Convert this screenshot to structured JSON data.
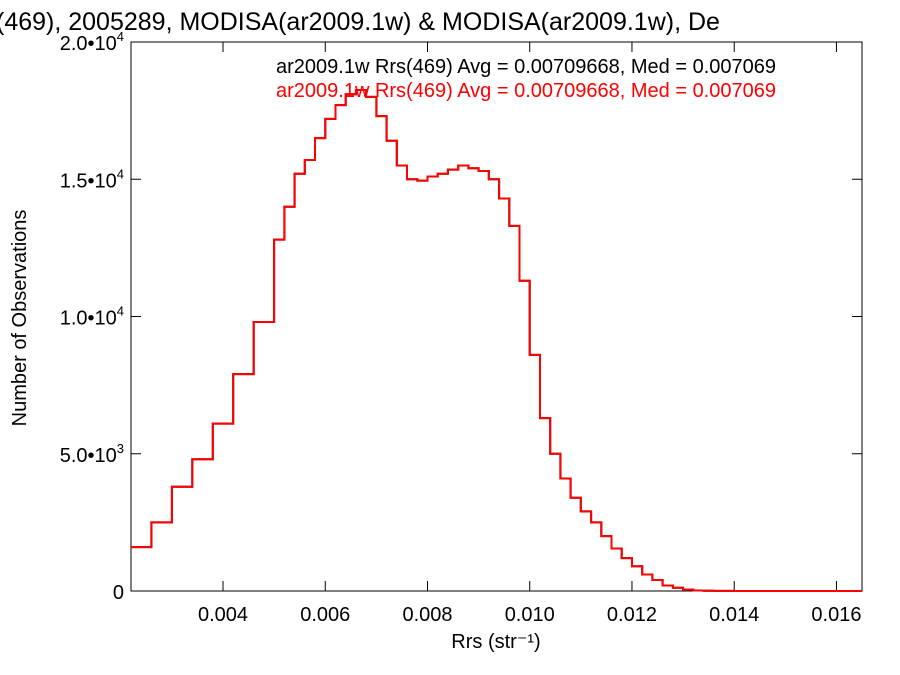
{
  "chart_data": {
    "type": "line",
    "title": "(469), 2005289, MODISA(ar2009.1w) & MODISA(ar2009.1w), De",
    "xlabel": "Rrs (str⁻¹)",
    "ylabel": "Number of Observations",
    "xlim": [
      0.0022,
      0.0165
    ],
    "ylim": [
      0,
      20000
    ],
    "x_ticks": [
      0.004,
      0.006,
      0.008,
      0.01,
      0.012,
      0.014,
      0.016
    ],
    "x_tick_labels": [
      "0.004",
      "0.006",
      "0.008",
      "0.010",
      "0.012",
      "0.014",
      "0.016"
    ],
    "y_ticks": [
      0,
      5000,
      10000,
      15000,
      20000
    ],
    "y_tick_labels": [
      {
        "mant": "0",
        "exp": ""
      },
      {
        "mant": "5.0•10",
        "exp": "3"
      },
      {
        "mant": "1.0•10",
        "exp": "4"
      },
      {
        "mant": "1.5•10",
        "exp": "4"
      },
      {
        "mant": "2.0•10",
        "exp": "4"
      }
    ],
    "grid": false,
    "step": true,
    "series": [
      {
        "name": "ar2009.1w Rrs(469) Avg = 0.00709668, Med = 0.007069",
        "color": "#000000",
        "x": [
          0.0022,
          0.0026,
          0.003,
          0.0034,
          0.0038,
          0.0042,
          0.0046,
          0.005,
          0.0052,
          0.0054,
          0.0056,
          0.0058,
          0.006,
          0.0062,
          0.0064,
          0.0066,
          0.0068,
          0.007,
          0.0072,
          0.0074,
          0.0076,
          0.0078,
          0.008,
          0.0082,
          0.0084,
          0.0086,
          0.0088,
          0.009,
          0.0092,
          0.0094,
          0.0096,
          0.0098,
          0.01,
          0.0102,
          0.0104,
          0.0106,
          0.0108,
          0.011,
          0.0112,
          0.0114,
          0.0116,
          0.0118,
          0.012,
          0.0122,
          0.0124,
          0.0126,
          0.0128,
          0.013,
          0.0132,
          0.0134,
          0.0136,
          0.014,
          0.015,
          0.016,
          0.0165
        ],
        "y": [
          1600,
          2500,
          3800,
          4800,
          6100,
          7900,
          9800,
          12800,
          14000,
          15200,
          15700,
          16500,
          17200,
          17700,
          18100,
          18250,
          18000,
          17300,
          16400,
          15500,
          15000,
          14950,
          15100,
          15200,
          15350,
          15500,
          15400,
          15300,
          15000,
          14300,
          13300,
          11300,
          8600,
          6300,
          5000,
          4100,
          3400,
          2900,
          2500,
          2000,
          1550,
          1200,
          900,
          600,
          400,
          200,
          120,
          50,
          20,
          10,
          5,
          0,
          0,
          0,
          0
        ]
      },
      {
        "name": "ar2009.1w Rrs(469) Avg = 0.00709668, Med = 0.007069",
        "color": "#ff0000",
        "x": [
          0.0022,
          0.0026,
          0.003,
          0.0034,
          0.0038,
          0.0042,
          0.0046,
          0.005,
          0.0052,
          0.0054,
          0.0056,
          0.0058,
          0.006,
          0.0062,
          0.0064,
          0.0066,
          0.0068,
          0.007,
          0.0072,
          0.0074,
          0.0076,
          0.0078,
          0.008,
          0.0082,
          0.0084,
          0.0086,
          0.0088,
          0.009,
          0.0092,
          0.0094,
          0.0096,
          0.0098,
          0.01,
          0.0102,
          0.0104,
          0.0106,
          0.0108,
          0.011,
          0.0112,
          0.0114,
          0.0116,
          0.0118,
          0.012,
          0.0122,
          0.0124,
          0.0126,
          0.0128,
          0.013,
          0.0132,
          0.0134,
          0.0136,
          0.014,
          0.015,
          0.016,
          0.0165
        ],
        "y": [
          1600,
          2500,
          3800,
          4800,
          6100,
          7900,
          9800,
          12800,
          14000,
          15200,
          15700,
          16500,
          17200,
          17700,
          18100,
          18250,
          18000,
          17300,
          16400,
          15500,
          15000,
          14950,
          15100,
          15200,
          15350,
          15500,
          15400,
          15300,
          15000,
          14300,
          13300,
          11300,
          8600,
          6300,
          5000,
          4100,
          3400,
          2900,
          2500,
          2000,
          1550,
          1200,
          900,
          600,
          400,
          200,
          120,
          50,
          20,
          10,
          5,
          0,
          0,
          0,
          0
        ]
      }
    ]
  }
}
